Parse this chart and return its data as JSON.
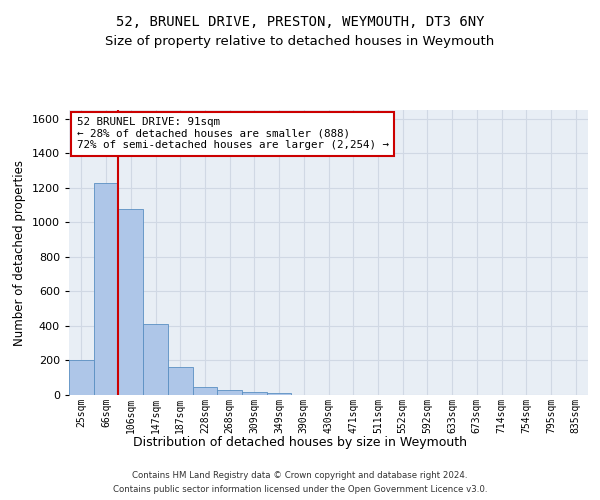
{
  "title1": "52, BRUNEL DRIVE, PRESTON, WEYMOUTH, DT3 6NY",
  "title2": "Size of property relative to detached houses in Weymouth",
  "xlabel": "Distribution of detached houses by size in Weymouth",
  "ylabel": "Number of detached properties",
  "categories": [
    "25sqm",
    "66sqm",
    "106sqm",
    "147sqm",
    "187sqm",
    "228sqm",
    "268sqm",
    "309sqm",
    "349sqm",
    "390sqm",
    "430sqm",
    "471sqm",
    "511sqm",
    "552sqm",
    "592sqm",
    "633sqm",
    "673sqm",
    "714sqm",
    "754sqm",
    "795sqm",
    "835sqm"
  ],
  "values": [
    205,
    1225,
    1075,
    410,
    160,
    45,
    27,
    15,
    13,
    0,
    0,
    0,
    0,
    0,
    0,
    0,
    0,
    0,
    0,
    0,
    0
  ],
  "bar_color": "#aec6e8",
  "bar_edge_color": "#5a8fc2",
  "vline_color": "#cc0000",
  "annotation_text": "52 BRUNEL DRIVE: 91sqm\n← 28% of detached houses are smaller (888)\n72% of semi-detached houses are larger (2,254) →",
  "annotation_box_color": "#ffffff",
  "annotation_box_edge_color": "#cc0000",
  "ylim": [
    0,
    1650
  ],
  "yticks": [
    0,
    200,
    400,
    600,
    800,
    1000,
    1200,
    1400,
    1600
  ],
  "grid_color": "#d0d8e4",
  "bg_color": "#e8eef5",
  "footer1": "Contains HM Land Registry data © Crown copyright and database right 2024.",
  "footer2": "Contains public sector information licensed under the Open Government Licence v3.0.",
  "title1_fontsize": 10,
  "title2_fontsize": 9.5,
  "xlabel_fontsize": 9,
  "ylabel_fontsize": 8.5,
  "vline_index": 1.5
}
